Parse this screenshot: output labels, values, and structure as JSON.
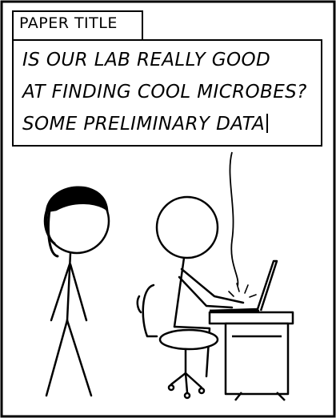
{
  "field": {
    "label": "PAPER TITLE",
    "lines": [
      "IS OUR LAB REALLY GOOD",
      "AT FINDING COOL MICROBES?",
      "SOME PRELIMINARY DATA"
    ]
  }
}
